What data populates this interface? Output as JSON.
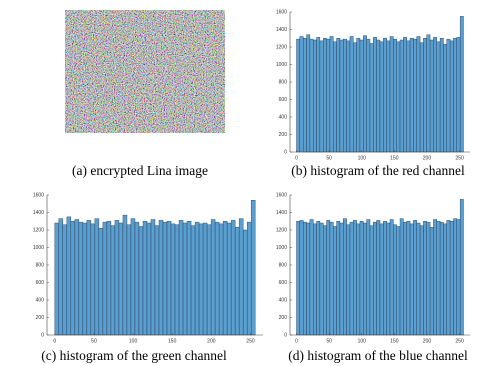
{
  "chart_data": [
    {
      "type": "image",
      "caption": "(a) encrypted Lina image"
    },
    {
      "type": "histogram",
      "caption": "(b) histogram of the red channel",
      "color": "#5b9fd0",
      "bins": [
        0,
        5.12,
        10.24,
        15.36,
        20.48,
        25.6,
        30.72,
        35.84,
        40.96,
        46.08,
        51.2,
        56.32,
        61.44,
        66.56,
        71.68,
        76.8,
        81.92,
        87.04,
        92.16,
        97.28,
        102.4,
        107.52,
        112.64,
        117.76,
        122.88,
        128,
        133.12,
        138.24,
        143.36,
        148.48,
        153.6,
        158.72,
        163.84,
        168.96,
        174.08,
        179.2,
        184.32,
        189.44,
        194.56,
        199.68,
        204.8,
        209.92,
        215.04,
        220.16,
        225.28,
        230.4,
        235.52,
        240.64,
        245.76,
        250.88,
        256
      ],
      "values": [
        1290,
        1320,
        1300,
        1340,
        1290,
        1280,
        1310,
        1270,
        1300,
        1290,
        1320,
        1260,
        1300,
        1280,
        1290,
        1270,
        1320,
        1250,
        1300,
        1280,
        1330,
        1290,
        1240,
        1310,
        1280,
        1260,
        1300,
        1270,
        1320,
        1290,
        1260,
        1280,
        1310,
        1270,
        1300,
        1290,
        1320,
        1250,
        1300,
        1340,
        1280,
        1310,
        1260,
        1300,
        1230,
        1290,
        1270,
        1300,
        1310,
        1550
      ],
      "xlim": [
        -10,
        266
      ],
      "ylim": [
        0,
        1600
      ],
      "xticks": [
        0,
        50,
        100,
        150,
        200,
        250
      ],
      "yticks": [
        0,
        200,
        400,
        600,
        800,
        1000,
        1200,
        1400,
        1600
      ]
    },
    {
      "type": "histogram",
      "caption": "(c) histogram of the green channel",
      "color": "#5b9fd0",
      "bins": [
        0,
        5.12,
        10.24,
        15.36,
        20.48,
        25.6,
        30.72,
        35.84,
        40.96,
        46.08,
        51.2,
        56.32,
        61.44,
        66.56,
        71.68,
        76.8,
        81.92,
        87.04,
        92.16,
        97.28,
        102.4,
        107.52,
        112.64,
        117.76,
        122.88,
        128,
        133.12,
        138.24,
        143.36,
        148.48,
        153.6,
        158.72,
        163.84,
        168.96,
        174.08,
        179.2,
        184.32,
        189.44,
        194.56,
        199.68,
        204.8,
        209.92,
        215.04,
        220.16,
        225.28,
        230.4,
        235.52,
        240.64,
        245.76,
        250.88,
        256
      ],
      "values": [
        1280,
        1330,
        1260,
        1350,
        1300,
        1320,
        1290,
        1280,
        1310,
        1270,
        1330,
        1220,
        1290,
        1300,
        1250,
        1310,
        1280,
        1370,
        1260,
        1330,
        1290,
        1240,
        1300,
        1280,
        1320,
        1250,
        1310,
        1290,
        1300,
        1270,
        1260,
        1310,
        1280,
        1300,
        1250,
        1290,
        1270,
        1280,
        1260,
        1320,
        1290,
        1270,
        1300,
        1280,
        1310,
        1230,
        1330,
        1200,
        1290,
        1540
      ],
      "xlim": [
        -10,
        266
      ],
      "ylim": [
        0,
        1600
      ],
      "xticks": [
        0,
        50,
        100,
        150,
        200,
        250
      ],
      "yticks": [
        0,
        200,
        400,
        600,
        800,
        1000,
        1200,
        1400,
        1600
      ]
    },
    {
      "type": "histogram",
      "caption": "(d) histogram of the blue channel",
      "color": "#5b9fd0",
      "bins": [
        0,
        5.12,
        10.24,
        15.36,
        20.48,
        25.6,
        30.72,
        35.84,
        40.96,
        46.08,
        51.2,
        56.32,
        61.44,
        66.56,
        71.68,
        76.8,
        81.92,
        87.04,
        92.16,
        97.28,
        102.4,
        107.52,
        112.64,
        117.76,
        122.88,
        128,
        133.12,
        138.24,
        143.36,
        148.48,
        153.6,
        158.72,
        163.84,
        168.96,
        174.08,
        179.2,
        184.32,
        189.44,
        194.56,
        199.68,
        204.8,
        209.92,
        215.04,
        220.16,
        225.28,
        230.4,
        235.52,
        240.64,
        245.76,
        250.88,
        256
      ],
      "values": [
        1300,
        1310,
        1290,
        1280,
        1320,
        1270,
        1300,
        1280,
        1250,
        1310,
        1290,
        1240,
        1300,
        1280,
        1330,
        1260,
        1290,
        1310,
        1270,
        1300,
        1280,
        1320,
        1250,
        1290,
        1310,
        1270,
        1300,
        1280,
        1320,
        1260,
        1240,
        1330,
        1290,
        1300,
        1270,
        1310,
        1280,
        1250,
        1300,
        1290,
        1230,
        1320,
        1300,
        1290,
        1270,
        1310,
        1300,
        1330,
        1320,
        1550
      ],
      "xlim": [
        -10,
        266
      ],
      "ylim": [
        0,
        1600
      ],
      "xticks": [
        0,
        50,
        100,
        150,
        200,
        250
      ],
      "yticks": [
        0,
        200,
        400,
        600,
        800,
        1000,
        1200,
        1400,
        1600
      ]
    }
  ]
}
